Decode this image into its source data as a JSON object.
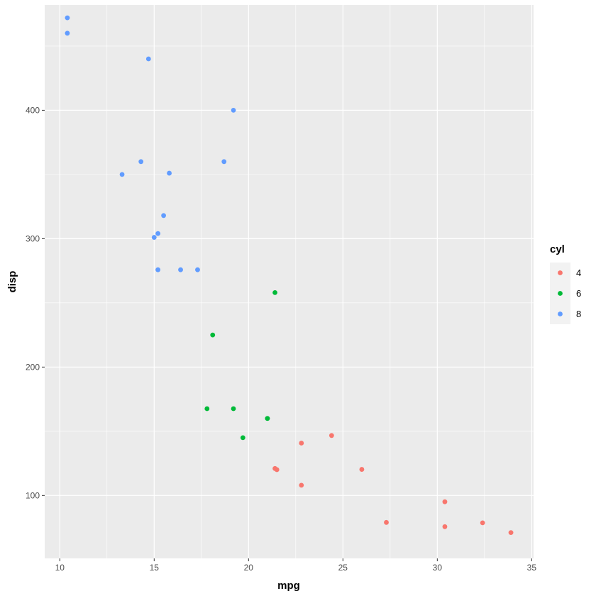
{
  "chart_data": {
    "type": "scatter",
    "xlabel": "mpg",
    "ylabel": "disp",
    "xlim": [
      9.2,
      35.1
    ],
    "ylim": [
      51,
      482
    ],
    "x_ticks": [
      10,
      15,
      20,
      25,
      30,
      35
    ],
    "y_ticks": [
      100,
      200,
      300,
      400
    ],
    "x_tick_labels": [
      "10",
      "15",
      "20",
      "25",
      "30",
      "35"
    ],
    "y_tick_labels": [
      "100",
      "200",
      "300",
      "400"
    ],
    "grid": true,
    "legend": {
      "title": "cyl",
      "placement": "right",
      "entries": [
        "4",
        "6",
        "8"
      ]
    },
    "colors": {
      "4": "#F8766D",
      "6": "#00BA38",
      "8": "#619CFF",
      "panel": "#EBEBEB",
      "grid": "#FFFFFF"
    },
    "series": [
      {
        "name": "4",
        "color": "#F8766D",
        "points": [
          [
            22.8,
            108
          ],
          [
            24.4,
            146.7
          ],
          [
            22.8,
            140.8
          ],
          [
            32.4,
            78.7
          ],
          [
            30.4,
            75.7
          ],
          [
            33.9,
            71.1
          ],
          [
            21.5,
            120.1
          ],
          [
            27.3,
            79
          ],
          [
            26.0,
            120.3
          ],
          [
            30.4,
            95.1
          ],
          [
            21.4,
            121
          ]
        ]
      },
      {
        "name": "6",
        "color": "#00BA38",
        "points": [
          [
            21.0,
            160
          ],
          [
            21.0,
            160
          ],
          [
            21.4,
            258
          ],
          [
            18.1,
            225
          ],
          [
            19.2,
            167.6
          ],
          [
            17.8,
            167.6
          ],
          [
            19.7,
            145
          ]
        ]
      },
      {
        "name": "8",
        "color": "#619CFF",
        "points": [
          [
            18.7,
            360
          ],
          [
            14.3,
            360
          ],
          [
            16.4,
            275.8
          ],
          [
            17.3,
            275.8
          ],
          [
            15.2,
            275.8
          ],
          [
            10.4,
            472
          ],
          [
            10.4,
            460
          ],
          [
            14.7,
            440
          ],
          [
            15.5,
            318
          ],
          [
            15.2,
            304
          ],
          [
            13.3,
            350
          ],
          [
            19.2,
            400
          ],
          [
            15.8,
            351
          ],
          [
            15.0,
            301
          ]
        ]
      }
    ]
  }
}
